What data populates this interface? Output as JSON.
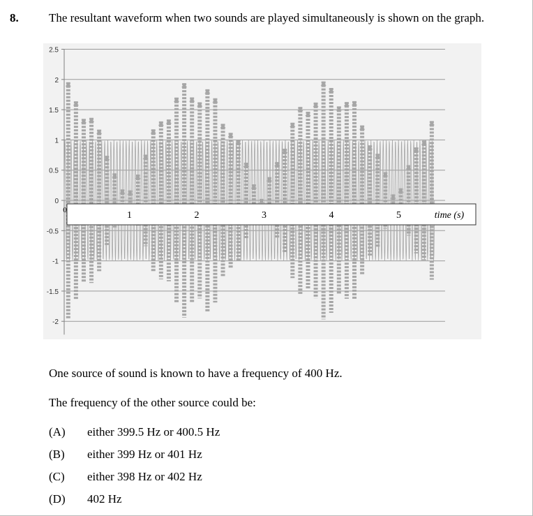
{
  "question": {
    "number": "8.",
    "text": "The resultant waveform when two sounds are played simultaneously is shown on the graph.",
    "line1": "One source of sound is known to have a frequency of 400 Hz.",
    "line2": "The frequency of the other source could be:",
    "options": [
      {
        "letter": "(A)",
        "text": "either 399.5 Hz or 400.5 Hz"
      },
      {
        "letter": "(B)",
        "text": "either 399 Hz or 401 Hz"
      },
      {
        "letter": "(C)",
        "text": "either 398 Hz or 402 Hz"
      },
      {
        "letter": "(D)",
        "text": "402 Hz"
      }
    ]
  },
  "chart_data": {
    "type": "line",
    "xlabel": "time (s)",
    "x_ticks": [
      "0",
      "1",
      "2",
      "3",
      "4",
      "5"
    ],
    "y_ticks": [
      "2.5",
      "2",
      "1.5",
      "1",
      "0.5",
      "0",
      "-0.5",
      "-1",
      "-1.5",
      "-2"
    ],
    "ylim": [
      -2.5,
      2.5
    ],
    "xlim": [
      0,
      5.5
    ],
    "grid": true,
    "series_color": "#a6a6a6",
    "envelope": {
      "beat_period_s": 2,
      "peak_amplitude": 2,
      "min_amplitude": 0,
      "reference_amplitude": 1
    }
  }
}
